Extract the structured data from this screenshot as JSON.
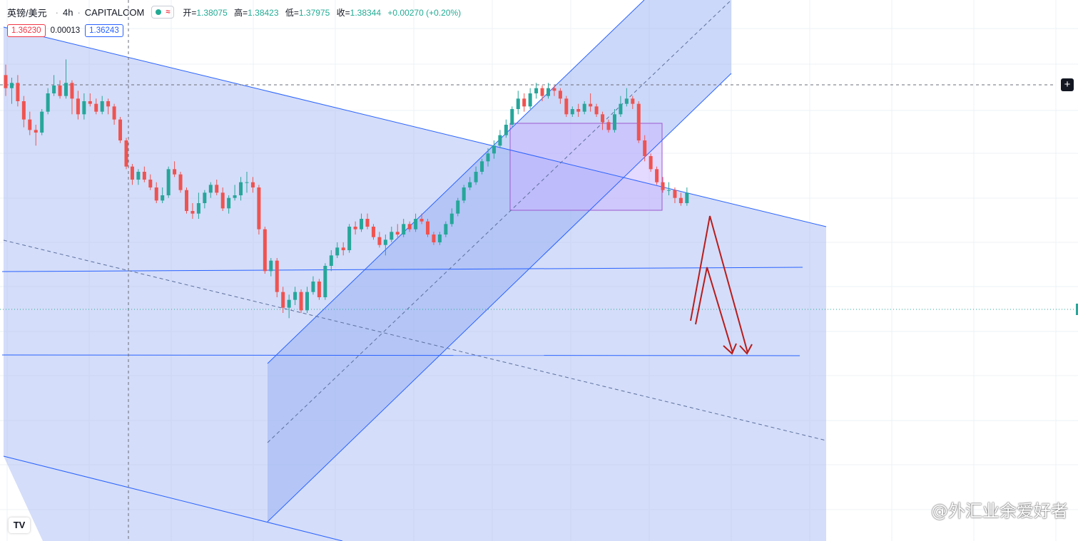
{
  "header": {
    "symbol": "英镑/美元",
    "timeframe": "4h",
    "source": "CAPITALCOM",
    "wave_icon": "≈",
    "open_label": "开=",
    "open": "1.38075",
    "high_label": "高=",
    "high": "1.38423",
    "low_label": "低=",
    "low": "1.37975",
    "close_label": "收=",
    "close": "1.38344",
    "change": "+0.00270 (+0.20%)"
  },
  "trade": {
    "sell": "1.36230",
    "spread": "0.00013",
    "buy": "1.36243"
  },
  "controls": {
    "add_icon": "+",
    "logo_text": "TV"
  },
  "watermark": "@外汇业余爱好者",
  "colors": {
    "up": "#26a69a",
    "down": "#ef5350",
    "channel_fill": "#b8c7f5",
    "line": "#2962ff",
    "box_fill": "#b39ddb",
    "arrow": "#b71c1c"
  },
  "chart_data": {
    "type": "candlestick",
    "series": [
      {
        "name": "英镑/美元, 4h",
        "ohlc": [
          [
            1.387,
            1.3845,
            1.389,
            1.383
          ],
          [
            1.3845,
            1.3855,
            1.3865,
            1.3815
          ],
          [
            1.3855,
            1.382,
            1.387,
            1.381
          ],
          [
            1.382,
            1.3785,
            1.383,
            1.377
          ],
          [
            1.3785,
            1.3765,
            1.38,
            1.3755
          ],
          [
            1.3765,
            1.376,
            1.3775,
            1.3735
          ],
          [
            1.376,
            1.38,
            1.3805,
            1.3755
          ],
          [
            1.38,
            1.3835,
            1.3845,
            1.3795
          ],
          [
            1.3835,
            1.385,
            1.387,
            1.383
          ],
          [
            1.385,
            1.383,
            1.386,
            1.3825
          ],
          [
            1.383,
            1.3855,
            1.39,
            1.3825
          ],
          [
            1.3855,
            1.3825,
            1.386,
            1.3795
          ],
          [
            1.3825,
            1.3795,
            1.384,
            1.3785
          ],
          [
            1.3795,
            1.382,
            1.3835,
            1.3785
          ],
          [
            1.382,
            1.3815,
            1.3835,
            1.381
          ],
          [
            1.3815,
            1.38,
            1.3825,
            1.3795
          ],
          [
            1.38,
            1.382,
            1.383,
            1.3795
          ],
          [
            1.382,
            1.381,
            1.3825,
            1.3795
          ],
          [
            1.381,
            1.3785,
            1.3815,
            1.3775
          ],
          [
            1.3785,
            1.3745,
            1.379,
            1.374
          ],
          [
            1.3745,
            1.3695,
            1.375,
            1.369
          ],
          [
            1.3695,
            1.367,
            1.37,
            1.366
          ],
          [
            1.367,
            1.3685,
            1.369,
            1.366
          ],
          [
            1.3685,
            1.367,
            1.3695,
            1.3665
          ],
          [
            1.367,
            1.3655,
            1.368,
            1.365
          ],
          [
            1.3655,
            1.363,
            1.3665,
            1.3625
          ],
          [
            1.363,
            1.364,
            1.3655,
            1.3625
          ],
          [
            1.364,
            1.369,
            1.3695,
            1.3635
          ],
          [
            1.369,
            1.368,
            1.3705,
            1.3675
          ],
          [
            1.368,
            1.365,
            1.3685,
            1.3645
          ],
          [
            1.365,
            1.361,
            1.3655,
            1.3605
          ],
          [
            1.361,
            1.3605,
            1.3625,
            1.3595
          ],
          [
            1.3605,
            1.3625,
            1.3645,
            1.3595
          ],
          [
            1.3625,
            1.3645,
            1.365,
            1.3615
          ],
          [
            1.3645,
            1.366,
            1.3665,
            1.3635
          ],
          [
            1.366,
            1.3645,
            1.367,
            1.364
          ],
          [
            1.3645,
            1.3615,
            1.3655,
            1.361
          ],
          [
            1.3615,
            1.3635,
            1.364,
            1.3605
          ],
          [
            1.3635,
            1.364,
            1.366,
            1.363
          ],
          [
            1.364,
            1.3665,
            1.3675,
            1.363
          ],
          [
            1.3665,
            1.3665,
            1.3685,
            1.3645
          ],
          [
            1.3665,
            1.3655,
            1.3675,
            1.3645
          ],
          [
            1.3655,
            1.3575,
            1.366,
            1.3565
          ],
          [
            1.3575,
            1.3495,
            1.358,
            1.349
          ],
          [
            1.3495,
            1.3515,
            1.352,
            1.3485
          ],
          [
            1.3515,
            1.3455,
            1.352,
            1.3445
          ],
          [
            1.3455,
            1.3425,
            1.3465,
            1.3415
          ],
          [
            1.3425,
            1.344,
            1.345,
            1.3405
          ],
          [
            1.344,
            1.3455,
            1.3465,
            1.343
          ],
          [
            1.3455,
            1.342,
            1.346,
            1.3415
          ],
          [
            1.342,
            1.3455,
            1.3465,
            1.3415
          ],
          [
            1.3455,
            1.3475,
            1.3485,
            1.345
          ],
          [
            1.3475,
            1.3445,
            1.348,
            1.344
          ],
          [
            1.3445,
            1.3505,
            1.351,
            1.344
          ],
          [
            1.3505,
            1.3525,
            1.3535,
            1.3495
          ],
          [
            1.3525,
            1.354,
            1.355,
            1.352
          ],
          [
            1.354,
            1.3535,
            1.355,
            1.3525
          ],
          [
            1.3535,
            1.358,
            1.3585,
            1.353
          ],
          [
            1.358,
            1.3575,
            1.359,
            1.3565
          ],
          [
            1.3575,
            1.3595,
            1.3605,
            1.357
          ],
          [
            1.3595,
            1.358,
            1.3605,
            1.3575
          ],
          [
            1.358,
            1.356,
            1.3585,
            1.3555
          ],
          [
            1.356,
            1.3545,
            1.357,
            1.354
          ],
          [
            1.3545,
            1.3555,
            1.3565,
            1.3525
          ],
          [
            1.3555,
            1.357,
            1.358,
            1.355
          ],
          [
            1.357,
            1.3565,
            1.3585,
            1.356
          ],
          [
            1.3565,
            1.3585,
            1.3595,
            1.356
          ],
          [
            1.3585,
            1.3575,
            1.359,
            1.357
          ],
          [
            1.3575,
            1.3595,
            1.3605,
            1.357
          ],
          [
            1.3595,
            1.359,
            1.3605,
            1.3585
          ],
          [
            1.359,
            1.3565,
            1.3595,
            1.356
          ],
          [
            1.3565,
            1.355,
            1.357,
            1.3545
          ],
          [
            1.355,
            1.3565,
            1.357,
            1.3545
          ],
          [
            1.3565,
            1.3585,
            1.359,
            1.356
          ],
          [
            1.3585,
            1.3605,
            1.3615,
            1.358
          ],
          [
            1.3605,
            1.363,
            1.3635,
            1.36
          ],
          [
            1.363,
            1.3655,
            1.366,
            1.3625
          ],
          [
            1.3655,
            1.3665,
            1.3675,
            1.365
          ],
          [
            1.3665,
            1.3685,
            1.3695,
            1.366
          ],
          [
            1.3685,
            1.3705,
            1.371,
            1.368
          ],
          [
            1.3705,
            1.372,
            1.373,
            1.3695
          ],
          [
            1.372,
            1.3735,
            1.3745,
            1.371
          ],
          [
            1.3735,
            1.3755,
            1.3765,
            1.373
          ],
          [
            1.3755,
            1.3775,
            1.3785,
            1.375
          ],
          [
            1.3775,
            1.3805,
            1.381,
            1.377
          ],
          [
            1.3805,
            1.3825,
            1.384,
            1.3795
          ],
          [
            1.3825,
            1.381,
            1.3835,
            1.38
          ],
          [
            1.381,
            1.3835,
            1.3845,
            1.3805
          ],
          [
            1.3835,
            1.3845,
            1.3855,
            1.3825
          ],
          [
            1.3845,
            1.383,
            1.385,
            1.382
          ],
          [
            1.383,
            1.3845,
            1.3855,
            1.3825
          ],
          [
            1.3845,
            1.384,
            1.385,
            1.383
          ],
          [
            1.384,
            1.3825,
            1.3845,
            1.3815
          ],
          [
            1.3825,
            1.3795,
            1.383,
            1.379
          ],
          [
            1.3795,
            1.3805,
            1.381,
            1.379
          ],
          [
            1.3805,
            1.38,
            1.3815,
            1.379
          ],
          [
            1.38,
            1.3815,
            1.382,
            1.3795
          ],
          [
            1.3815,
            1.381,
            1.3835,
            1.38
          ],
          [
            1.381,
            1.3795,
            1.3815,
            1.379
          ],
          [
            1.3795,
            1.378,
            1.38,
            1.3765
          ],
          [
            1.378,
            1.3765,
            1.3785,
            1.376
          ],
          [
            1.3765,
            1.3795,
            1.3805,
            1.376
          ],
          [
            1.3795,
            1.3815,
            1.383,
            1.379
          ],
          [
            1.3815,
            1.3825,
            1.3845,
            1.381
          ],
          [
            1.3825,
            1.3815,
            1.383,
            1.3805
          ],
          [
            1.3815,
            1.3745,
            1.382,
            1.374
          ],
          [
            1.3745,
            1.3715,
            1.3755,
            1.3705
          ],
          [
            1.3715,
            1.369,
            1.372,
            1.3685
          ],
          [
            1.369,
            1.3665,
            1.3695,
            1.366
          ],
          [
            1.3665,
            1.365,
            1.3675,
            1.3645
          ],
          [
            1.365,
            1.365,
            1.3665,
            1.364
          ],
          [
            1.365,
            1.3635,
            1.3655,
            1.3625
          ],
          [
            1.3635,
            1.3625,
            1.3645,
            1.362
          ],
          [
            1.3625,
            1.3645,
            1.3655,
            1.362
          ]
        ]
      }
    ],
    "annotations": [
      "descending channel",
      "ascending channel",
      "consolidation box",
      "horizontal levels",
      "projected downward arrows"
    ]
  }
}
